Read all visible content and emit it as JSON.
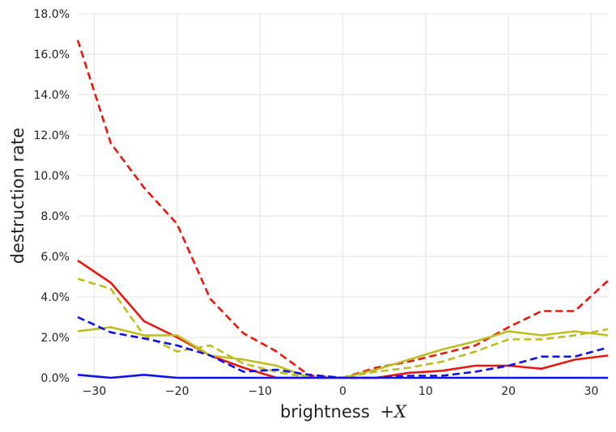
{
  "chart_data": {
    "type": "line",
    "xlabel": "brightness",
    "xlabel_var": "+X",
    "ylabel": "destruction rate",
    "xlim": [
      -32,
      32
    ],
    "ylim": [
      0,
      18
    ],
    "x_ticks": [
      -30,
      -20,
      -10,
      0,
      10,
      20,
      30
    ],
    "x_tick_labels": [
      "−30",
      "−20",
      "−10",
      "0",
      "10",
      "20",
      "30"
    ],
    "y_ticks": [
      0,
      2,
      4,
      6,
      8,
      10,
      12,
      14,
      16,
      18
    ],
    "y_tick_labels": [
      "0.0%",
      "2.0%",
      "4.0%",
      "6.0%",
      "8.0%",
      "10.0%",
      "12.0%",
      "14.0%",
      "16.0%",
      "18.0%"
    ],
    "grid": true,
    "series": [
      {
        "color": "#e8170f",
        "dash": "dashed",
        "points": [
          [
            -32,
            16.7
          ],
          [
            -28,
            11.6
          ],
          [
            -24,
            9.4
          ],
          [
            -20,
            7.6
          ],
          [
            -16,
            3.9
          ],
          [
            -12,
            2.2
          ],
          [
            -8,
            1.3
          ],
          [
            -4,
            0.1
          ],
          [
            0,
            0.0
          ],
          [
            4,
            0.5
          ],
          [
            8,
            0.8
          ],
          [
            12,
            1.2
          ],
          [
            16,
            1.6
          ],
          [
            20,
            2.5
          ],
          [
            24,
            3.3
          ],
          [
            28,
            3.3
          ],
          [
            32,
            4.8
          ]
        ]
      },
      {
        "color": "#e8170f",
        "dash": "solid",
        "points": [
          [
            -32,
            5.8
          ],
          [
            -28,
            4.7
          ],
          [
            -24,
            2.8
          ],
          [
            -20,
            2.0
          ],
          [
            -16,
            1.1
          ],
          [
            -12,
            0.5
          ],
          [
            -8,
            0.0
          ],
          [
            -4,
            0.0
          ],
          [
            0,
            0.0
          ],
          [
            4,
            0.0
          ],
          [
            8,
            0.25
          ],
          [
            12,
            0.35
          ],
          [
            16,
            0.6
          ],
          [
            20,
            0.6
          ],
          [
            24,
            0.45
          ],
          [
            28,
            0.9
          ],
          [
            32,
            1.1
          ]
        ]
      },
      {
        "color": "#bdbd1e",
        "dash": "dashed",
        "points": [
          [
            -32,
            4.9
          ],
          [
            -28,
            4.4
          ],
          [
            -24,
            2.1
          ],
          [
            -20,
            1.3
          ],
          [
            -16,
            1.6
          ],
          [
            -12,
            0.7
          ],
          [
            -8,
            0.3
          ],
          [
            -4,
            0.0
          ],
          [
            0,
            0.0
          ],
          [
            4,
            0.3
          ],
          [
            8,
            0.5
          ],
          [
            12,
            0.8
          ],
          [
            16,
            1.3
          ],
          [
            20,
            1.9
          ],
          [
            24,
            1.9
          ],
          [
            28,
            2.1
          ],
          [
            32,
            2.4
          ]
        ]
      },
      {
        "color": "#bdbd1e",
        "dash": "solid",
        "points": [
          [
            -32,
            2.3
          ],
          [
            -28,
            2.5
          ],
          [
            -24,
            2.1
          ],
          [
            -20,
            2.1
          ],
          [
            -16,
            1.1
          ],
          [
            -12,
            0.9
          ],
          [
            -8,
            0.6
          ],
          [
            -4,
            0.0
          ],
          [
            0,
            0.0
          ],
          [
            4,
            0.4
          ],
          [
            8,
            0.9
          ],
          [
            12,
            1.4
          ],
          [
            16,
            1.8
          ],
          [
            20,
            2.3
          ],
          [
            24,
            2.1
          ],
          [
            28,
            2.3
          ],
          [
            32,
            2.1
          ]
        ]
      },
      {
        "color": "#1010e8",
        "dash": "dashed",
        "points": [
          [
            -32,
            3.0
          ],
          [
            -28,
            2.25
          ],
          [
            -24,
            1.95
          ],
          [
            -20,
            1.6
          ],
          [
            -16,
            1.1
          ],
          [
            -12,
            0.3
          ],
          [
            -8,
            0.4
          ],
          [
            -4,
            0.15
          ],
          [
            0,
            0.0
          ],
          [
            4,
            0.0
          ],
          [
            8,
            0.1
          ],
          [
            12,
            0.1
          ],
          [
            16,
            0.3
          ],
          [
            20,
            0.6
          ],
          [
            24,
            1.05
          ],
          [
            28,
            1.05
          ],
          [
            32,
            1.5
          ]
        ]
      },
      {
        "color": "#1010e8",
        "dash": "solid",
        "points": [
          [
            -32,
            0.15
          ],
          [
            -28,
            0.0
          ],
          [
            -24,
            0.15
          ],
          [
            -20,
            0.0
          ],
          [
            -16,
            0.0
          ],
          [
            -12,
            0.0
          ],
          [
            -8,
            0.0
          ],
          [
            -4,
            0.0
          ],
          [
            0,
            0.0
          ],
          [
            4,
            0.0
          ],
          [
            8,
            0.0
          ],
          [
            12,
            0.0
          ],
          [
            16,
            0.0
          ],
          [
            20,
            0.0
          ],
          [
            24,
            0.0
          ],
          [
            28,
            0.0
          ],
          [
            32,
            0.0
          ]
        ]
      }
    ]
  }
}
